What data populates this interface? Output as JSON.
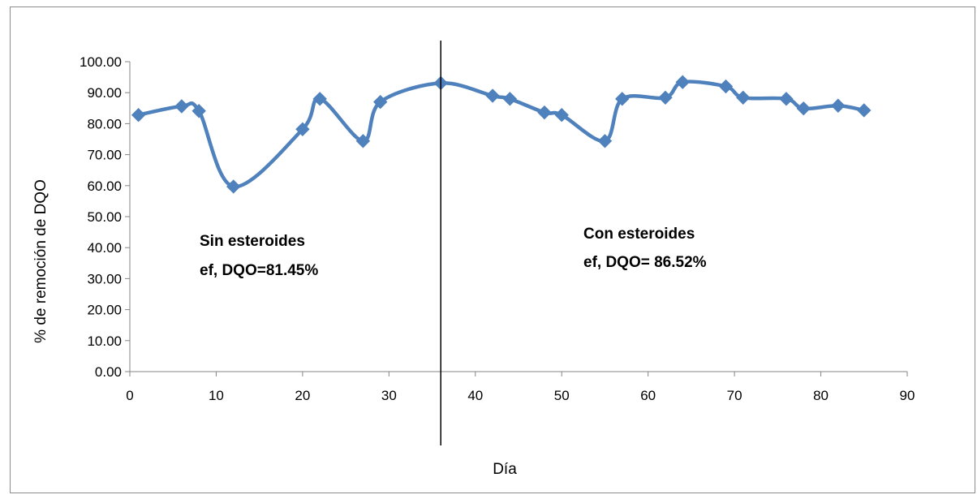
{
  "chart_data": {
    "type": "line",
    "xlabel": "Día",
    "ylabel": "% de remoción de DQO",
    "xlim": [
      0,
      90
    ],
    "ylim": [
      0,
      100
    ],
    "x_ticks": [
      "0",
      "10",
      "20",
      "30",
      "40",
      "50",
      "60",
      "70",
      "80",
      "90"
    ],
    "y_ticks": [
      "0.00",
      "10.00",
      "20.00",
      "30.00",
      "40.00",
      "50.00",
      "60.00",
      "70.00",
      "80.00",
      "90.00",
      "100.00"
    ],
    "grid": false,
    "legend": false,
    "series_color": "#4F81BD",
    "marker": "diamond",
    "smooth": true,
    "series": [
      {
        "x": [
          1,
          6,
          8,
          12,
          20,
          22,
          27,
          29,
          36,
          42,
          44,
          48,
          50,
          55,
          57,
          62,
          64,
          69,
          71,
          76,
          78,
          82,
          85
        ],
        "y": [
          82.8,
          85.6,
          84.1,
          59.7,
          78.2,
          88.0,
          74.4,
          87.0,
          93.1,
          89.0,
          88.0,
          83.6,
          82.8,
          74.4,
          88.0,
          88.4,
          93.4,
          92.0,
          88.4,
          88.0,
          84.9,
          85.8,
          84.3
        ]
      }
    ],
    "vertical_line": {
      "x": 36
    },
    "annotations": [
      {
        "line1": "Sin esteroides",
        "line2": "ef, DQO=81.45%"
      },
      {
        "line1": "Con esteroides",
        "line2": "ef, DQO= 86.52%"
      }
    ]
  }
}
